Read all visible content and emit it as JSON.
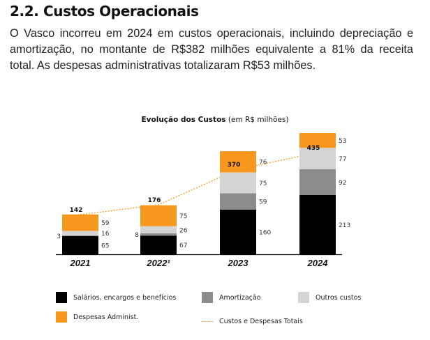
{
  "section": {
    "heading": "2.2. Custos Operacionais",
    "paragraph": "O Vasco incorreu em 2024 em custos operacionais, incluindo depreciação e amortização, no montante de R$382 milhões equivalente a 81% da receita total. As despesas administrativas totalizaram R$53 milhões."
  },
  "chart_data": {
    "type": "bar",
    "stacked": true,
    "title": "Evolução dos Custos",
    "subtitle": "(em R$ milhões)",
    "categories": [
      "2021",
      "2022¹",
      "2023",
      "2024"
    ],
    "series": [
      {
        "name": "Salários, encargos e benefícios",
        "color": "#000000",
        "values": [
          65,
          67,
          160,
          213
        ]
      },
      {
        "name": "Amortização",
        "color": "#8c8c8c",
        "values": [
          3,
          8,
          59,
          92
        ]
      },
      {
        "name": "Outros custos",
        "color": "#d4d4d4",
        "values": [
          16,
          26,
          75,
          77
        ]
      },
      {
        "name": "Despesas Administ.",
        "color": "#f7971e",
        "values": [
          59,
          75,
          76,
          53
        ]
      }
    ],
    "line": {
      "name": "Custos e Despesas Totais",
      "color": "#f39c1f",
      "values": [
        142,
        176,
        370,
        435
      ]
    },
    "legend_position": "bottom",
    "grid": false
  }
}
